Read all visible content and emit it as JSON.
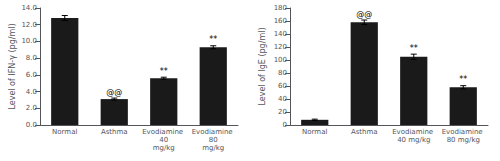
{
  "chart_data": [
    {
      "type": "bar",
      "categories": [
        "Normal",
        "Asthma",
        "Evodiamine 40\nmg/kg",
        "Evodiamine 80\nmg/kg"
      ],
      "values": [
        12.8,
        3.1,
        5.6,
        9.3
      ],
      "errors": [
        0.3,
        0.12,
        0.12,
        0.18
      ],
      "ylabel": "Level of IFN-γ (pg/ml)",
      "ylim": [
        0,
        14.0
      ],
      "yticks": [
        {
          "value": 0.0,
          "label": "0.0"
        },
        {
          "value": 2.0,
          "label": "2.0"
        },
        {
          "value": 4.0,
          "label": "4.0"
        },
        {
          "value": 6.0,
          "label": "6.0"
        },
        {
          "value": 8.0,
          "label": "8.0"
        },
        {
          "value": 10.0,
          "label": "10.0"
        },
        {
          "value": 12.0,
          "label": "12.0"
        },
        {
          "value": 14.0,
          "label": "14.0"
        }
      ],
      "annotations": [
        null,
        "@@",
        "**",
        "**"
      ],
      "color": "#1a1a1a",
      "grid": false
    },
    {
      "type": "bar",
      "categories": [
        "Normal",
        "Asthma",
        "Evodiamine 40 mg/kg",
        "Evodiamine 80 mg/kg"
      ],
      "values": [
        8,
        158,
        105,
        58
      ],
      "errors": [
        1.0,
        3.5,
        4.0,
        2.5
      ],
      "ylabel": "Level of IgE (pg/ml)",
      "ylim": [
        0,
        180
      ],
      "yticks": [
        0,
        20,
        40,
        60,
        80,
        100,
        120,
        140,
        160,
        180
      ],
      "annotations": [
        null,
        "@@",
        "**",
        "**"
      ],
      "color": "#1a1a1a",
      "grid": false
    }
  ]
}
